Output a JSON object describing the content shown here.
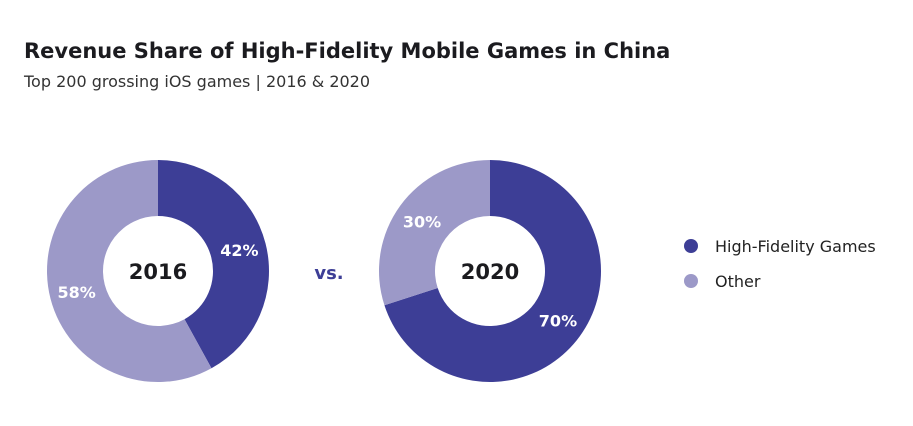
{
  "title": "Revenue Share of High-Fidelity Mobile Games in China",
  "subtitle": "Top 200 grossing iOS games | 2016 & 2020",
  "vs_label": "vs.",
  "colors": {
    "high_fidelity": "#3d3e96",
    "other": "#9c99c8",
    "vs": "#3d3e96"
  },
  "legend": [
    {
      "label": "High-Fidelity Games",
      "color": "#3d3e96"
    },
    {
      "label": "Other",
      "color": "#9c99c8"
    }
  ],
  "chart_data": [
    {
      "type": "pie",
      "center_label": "2016",
      "slices": [
        {
          "name": "High-Fidelity Games",
          "value": 42,
          "label": "42%",
          "color": "#3d3e96"
        },
        {
          "name": "Other",
          "value": 58,
          "label": "58%",
          "color": "#9c99c8"
        }
      ]
    },
    {
      "type": "pie",
      "center_label": "2020",
      "slices": [
        {
          "name": "High-Fidelity Games",
          "value": 70,
          "label": "70%",
          "color": "#3d3e96"
        },
        {
          "name": "Other",
          "value": 30,
          "label": "30%",
          "color": "#9c99c8"
        }
      ]
    }
  ]
}
